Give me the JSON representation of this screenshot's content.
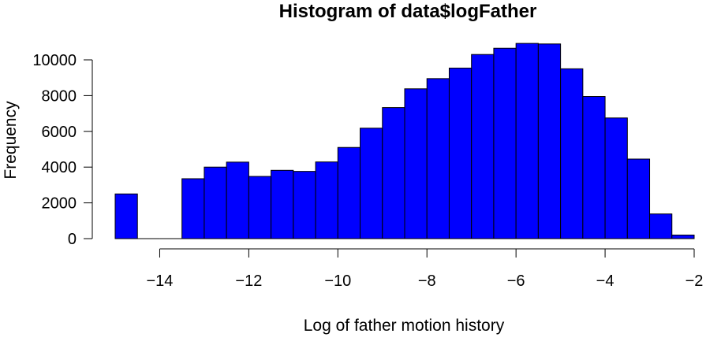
{
  "chart_data": {
    "type": "bar",
    "title": "Histogram of data$logFather",
    "xlabel": "Log of father motion history",
    "ylabel": "Frequency",
    "bar_color": "#0000ff",
    "bin_width": 0.5,
    "bin_starts": [
      -15,
      -14.5,
      -14,
      -13.5,
      -13,
      -12.5,
      -12,
      -11.5,
      -11,
      -10.5,
      -10,
      -9.5,
      -9,
      -8.5,
      -8,
      -7.5,
      -7,
      -6.5,
      -6,
      -5.5,
      -5,
      -4.5,
      -4,
      -3.5,
      -3,
      -2.5
    ],
    "values": [
      2500,
      0,
      0,
      3350,
      4000,
      4280,
      3480,
      3820,
      3760,
      4290,
      5100,
      6180,
      7330,
      8380,
      8950,
      9540,
      10300,
      10650,
      10920,
      10890,
      9500,
      7950,
      6750,
      4450,
      1380,
      200
    ],
    "xlim": [
      -15,
      -2
    ],
    "ylim": [
      0,
      11000
    ],
    "x_ticks": [
      "−14",
      "−12",
      "−10",
      "−8",
      "−6",
      "−4",
      "−2"
    ],
    "x_tick_values": [
      -14,
      -12,
      -10,
      -8,
      -6,
      -4,
      -2
    ],
    "y_ticks": [
      "0",
      "2000",
      "4000",
      "6000",
      "8000",
      "10000"
    ],
    "y_tick_values": [
      0,
      2000,
      4000,
      6000,
      8000,
      10000
    ]
  }
}
